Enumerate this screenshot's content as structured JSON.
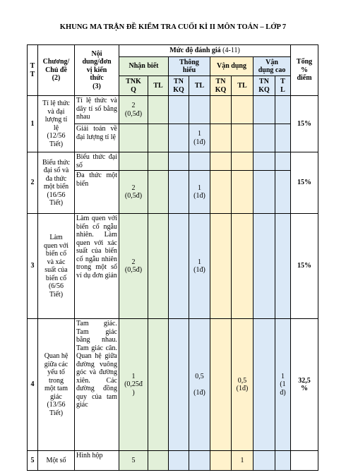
{
  "title": "KHUNG MA TRẬN ĐỀ KIỂM TRA CUỐI KÌ II MÔN TOÁN – LỚP 7",
  "table": {
    "header": {
      "tt": "T\nT",
      "chapter": "Chương/\nChủ đề",
      "chapter_note": "(2)",
      "content": "Nội\ndung/đơn\nvị kiến\nthức",
      "content_note": "(3)",
      "level": "Mức độ đánh giá",
      "level_note": "(4-11)",
      "total": "Tổng\n%\nđiểm",
      "groups": {
        "nb": "Nhận biết",
        "th": "Thông\nhiểu",
        "vd": "Vận dụng",
        "vdc": "Vận\ndụng cao"
      },
      "columns": {
        "nb_tnkq": "TNK\nQ",
        "nb_tl": "TL",
        "th_tnkq": "TN\nKQ",
        "th_tl": "TL",
        "vd_tnkq": "TN\nKQ",
        "vd_tl": "TL",
        "vdc_tnkq": "TN\nKQ",
        "vdc_tl": "T\nL"
      }
    },
    "rows": [
      {
        "tt": "1",
        "chapter": "Tỉ lệ thức\nvà đại\nlượng tỉ\nlệ\n(12/56\nTiết)",
        "total": "15%",
        "items": [
          {
            "content": "Tỉ lệ thức và dãy tỉ số bằng nhau",
            "cells": {
              "nb_tnkq": "2\n(0,5đ)"
            }
          },
          {
            "content": "Giải toán về đại lượng tỉ lệ",
            "cells": {
              "th_tl": "1\n(1đ)"
            }
          }
        ]
      },
      {
        "tt": "2",
        "chapter": "Biểu thức\nđại số và\nđa thức\nmột biến\n(16/56\nTiết)",
        "total": "15%",
        "items": [
          {
            "content": "Biểu thức đại số",
            "cells": {}
          },
          {
            "content": "Đa thức một biến",
            "cells": {
              "nb_tnkq": "2\n(0,5đ)",
              "th_tl": "1\n(1đ)"
            }
          }
        ]
      },
      {
        "tt": "3",
        "chapter": "Làm\nquen với\nbiến cố\nvà xác\nsuất của\nbiến cố\n(6/56\nTiết)",
        "total": "15%",
        "items": [
          {
            "content": "Làm quen với biến cố ngẫu nhiên. Làm quen với xác suất của biến cố ngẫu nhiên trong một số ví dụ đơn giản",
            "cells": {
              "nb_tnkq": "2\n(0,5đ)",
              "th_tl": "1\n(1đ)"
            }
          }
        ]
      },
      {
        "tt": "4",
        "chapter": "Quan hệ\ngiữa các\nyếu tố\ntrong\nmột tam\ngiác\n(13/56\nTiết)",
        "total": "32,5\n%",
        "items": [
          {
            "content": "Tam giác. Tam giác bằng nhau. Tam giác cân. Quan hệ giữa đường vuông góc và đường xiên. Các đường đồng quy của tam giác",
            "cells": {
              "nb_tnkq": "1\n(0,25đ\n)",
              "th_tl": "0,5\n\n(1đ)",
              "vd_tl": "0,5\n(1đ)",
              "vdc_tl": "1\n(1\nđ)"
            }
          }
        ]
      },
      {
        "tt": "5",
        "chapter": "Một số",
        "items": [
          {
            "content": "Hình hộp",
            "cells": {
              "nb_tnkq": "5",
              "vd_tl": "1"
            }
          }
        ]
      }
    ]
  }
}
